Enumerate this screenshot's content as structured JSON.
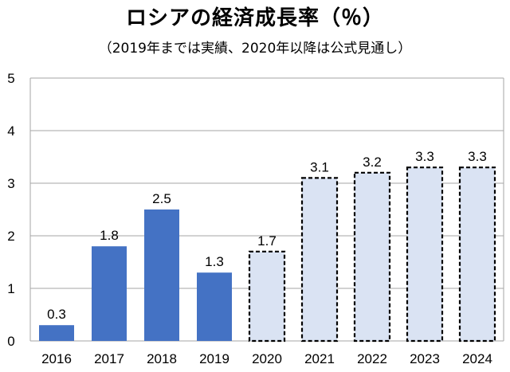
{
  "header": {
    "title": "ロシアの経済成長率（％）",
    "subtitle": "（2019年までは実績、2020年以降は公式見通し）"
  },
  "chart_data": {
    "type": "bar",
    "title": "ロシアの経済成長率（％）",
    "subtitle": "（2019年までは実績、2020年以降は公式見通し）",
    "categories": [
      "2016",
      "2017",
      "2018",
      "2019",
      "2020",
      "2021",
      "2022",
      "2023",
      "2024"
    ],
    "values": [
      0.3,
      1.8,
      2.5,
      1.3,
      1.7,
      3.1,
      3.2,
      3.3,
      3.3
    ],
    "data_labels": [
      "0.3",
      "1.8",
      "2.5",
      "1.3",
      "1.7",
      "3.1",
      "3.2",
      "3.3",
      "3.3"
    ],
    "bar_kind": [
      "actual",
      "actual",
      "actual",
      "actual",
      "forecast",
      "forecast",
      "forecast",
      "forecast",
      "forecast"
    ],
    "ylim": [
      0,
      5
    ],
    "yticks": [
      "0",
      "1",
      "2",
      "3",
      "4",
      "5"
    ],
    "grid": true,
    "legend": "none",
    "colors": {
      "actual": "#4472c4",
      "forecast_fill": "#dae3f3",
      "forecast_border": "#000000",
      "grid": "#a6a6a6"
    }
  }
}
